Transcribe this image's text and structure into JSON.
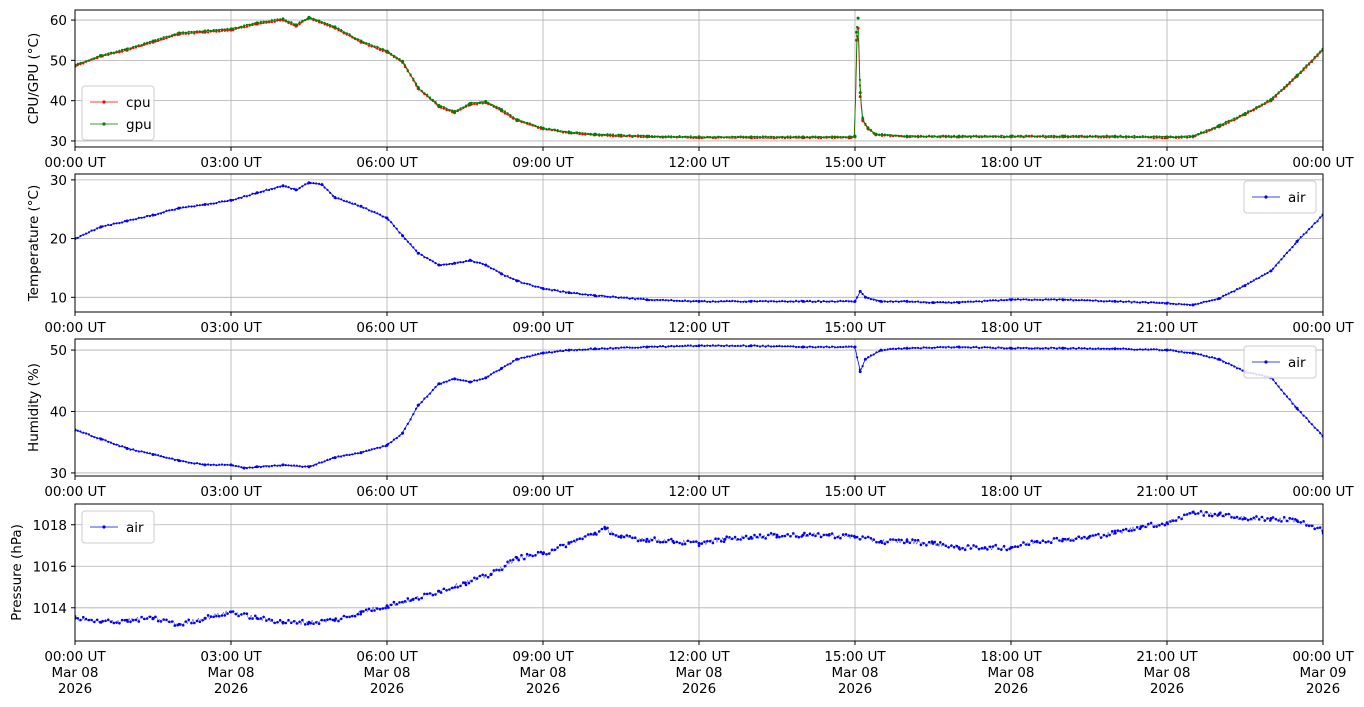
{
  "chart_data": [
    {
      "type": "line",
      "ylabel": "CPU/GPU (°C)",
      "ylim": [
        28.5,
        62.5
      ],
      "xlim": [
        0,
        24
      ],
      "yticks": [
        30,
        40,
        50,
        60
      ],
      "xticks": [
        0,
        3,
        6,
        9,
        12,
        15,
        18,
        21,
        24
      ],
      "xtick_labels": [
        "00:00 UT",
        "03:00 UT",
        "06:00 UT",
        "09:00 UT",
        "12:00 UT",
        "15:00 UT",
        "18:00 UT",
        "21:00 UT",
        "00:00 UT"
      ],
      "grid": true,
      "legend_position": "lower-left",
      "series": [
        {
          "name": "cpu",
          "color": "#ff0000",
          "x": [
            0,
            0.5,
            1,
            1.5,
            2,
            2.5,
            3,
            3.5,
            4,
            4.25,
            4.5,
            5,
            5.5,
            6,
            6.3,
            6.6,
            7,
            7.3,
            7.6,
            7.9,
            8.2,
            8.5,
            9,
            9.5,
            10,
            10.5,
            11,
            12,
            13,
            14,
            14.9,
            15,
            15.03,
            15.06,
            15.1,
            15.15,
            15.25,
            15.4,
            16,
            17,
            18,
            19,
            20,
            21,
            21.5,
            22,
            22.5,
            23,
            23.5,
            24
          ],
          "values": [
            48.5,
            51,
            52.5,
            54.5,
            56.5,
            57,
            57.5,
            59,
            60,
            58.5,
            60.5,
            58,
            54.5,
            52,
            49.5,
            43,
            38.5,
            37,
            39,
            39.5,
            37.5,
            35,
            33,
            32,
            31.5,
            31.2,
            31,
            30.8,
            30.8,
            30.8,
            30.8,
            31,
            55,
            58,
            41,
            35,
            33,
            31.5,
            31,
            31,
            31,
            31,
            31,
            30.8,
            31,
            33.5,
            36.5,
            40,
            46,
            52.5
          ]
        },
        {
          "name": "gpu",
          "color": "#008000",
          "x": [
            0,
            0.5,
            1,
            1.5,
            2,
            2.5,
            3,
            3.5,
            4,
            4.25,
            4.5,
            5,
            5.5,
            6,
            6.3,
            6.6,
            7,
            7.3,
            7.6,
            7.9,
            8.2,
            8.5,
            9,
            9.5,
            10,
            10.5,
            11,
            12,
            13,
            14,
            14.9,
            15,
            15.03,
            15.06,
            15.1,
            15.15,
            15.25,
            15.4,
            16,
            17,
            18,
            19,
            20,
            21,
            21.5,
            22,
            22.5,
            23,
            23.5,
            24
          ],
          "values": [
            48.8,
            51.2,
            52.8,
            54.8,
            56.8,
            57.3,
            57.8,
            59.3,
            60.3,
            58.8,
            60.7,
            58.3,
            54.8,
            52.3,
            49.8,
            43.3,
            38.8,
            37.3,
            39.3,
            39.8,
            37.8,
            35.3,
            33.2,
            32.2,
            31.7,
            31.4,
            31.2,
            31,
            31,
            31,
            31,
            31.2,
            57,
            60.5,
            42,
            35.5,
            33.3,
            31.7,
            31.2,
            31.2,
            31.2,
            31.2,
            31.2,
            31,
            31.2,
            33.8,
            36.8,
            40.3,
            46.3,
            52.8
          ]
        }
      ]
    },
    {
      "type": "line",
      "ylabel": "Temperature (°C)",
      "ylim": [
        7.5,
        31
      ],
      "xlim": [
        0,
        24
      ],
      "yticks": [
        10,
        20,
        30
      ],
      "xticks": [
        0,
        3,
        6,
        9,
        12,
        15,
        18,
        21,
        24
      ],
      "xtick_labels": [
        "00:00 UT",
        "03:00 UT",
        "06:00 UT",
        "09:00 UT",
        "12:00 UT",
        "15:00 UT",
        "18:00 UT",
        "21:00 UT",
        "00:00 UT"
      ],
      "grid": true,
      "legend_position": "upper-right",
      "series": [
        {
          "name": "air",
          "color": "#0000ff",
          "x": [
            0,
            0.5,
            1,
            1.5,
            2,
            2.5,
            3,
            3.5,
            4,
            4.25,
            4.5,
            4.75,
            5,
            5.5,
            6,
            6.3,
            6.6,
            7,
            7.3,
            7.6,
            7.9,
            8.2,
            8.5,
            9,
            9.5,
            10,
            11,
            12,
            13,
            14,
            15,
            15.1,
            15.2,
            15.5,
            16,
            16.5,
            17,
            18,
            19,
            20,
            21,
            21.5,
            22,
            22.5,
            23,
            23.5,
            24
          ],
          "values": [
            20,
            22,
            23,
            24,
            25.2,
            25.8,
            26.5,
            27.8,
            29,
            28.3,
            29.5,
            29.2,
            27,
            25.5,
            23.5,
            20.5,
            17.5,
            15.5,
            15.8,
            16.3,
            15.5,
            14,
            12.8,
            11.5,
            10.8,
            10.3,
            9.6,
            9.3,
            9.3,
            9.3,
            9.3,
            11,
            10,
            9.3,
            9.3,
            9.1,
            9.1,
            9.6,
            9.6,
            9.3,
            9,
            8.7,
            9.8,
            12,
            14.5,
            19.5,
            24
          ]
        }
      ]
    },
    {
      "type": "line",
      "ylabel": "Humidity (%)",
      "ylim": [
        29.5,
        51.8
      ],
      "xlim": [
        0,
        24
      ],
      "yticks": [
        30,
        40,
        50
      ],
      "xticks": [
        0,
        3,
        6,
        9,
        12,
        15,
        18,
        21,
        24
      ],
      "xtick_labels": [
        "00:00 UT",
        "03:00 UT",
        "06:00 UT",
        "09:00 UT",
        "12:00 UT",
        "15:00 UT",
        "18:00 UT",
        "21:00 UT",
        "00:00 UT"
      ],
      "grid": true,
      "legend_position": "upper-right",
      "series": [
        {
          "name": "air",
          "color": "#0000ff",
          "x": [
            0,
            0.5,
            1,
            1.5,
            2,
            2.5,
            3,
            3.25,
            3.5,
            4,
            4.5,
            5,
            5.5,
            6,
            6.3,
            6.6,
            7,
            7.3,
            7.6,
            7.9,
            8.2,
            8.5,
            9,
            9.5,
            10,
            11,
            12,
            13,
            14,
            15,
            15.1,
            15.2,
            15.5,
            16,
            17,
            18,
            19,
            20,
            21,
            21.5,
            22,
            22.5,
            23,
            23.5,
            24
          ],
          "values": [
            37,
            35.5,
            34,
            33,
            32,
            31.3,
            31.3,
            30.8,
            31,
            31.3,
            31,
            32.5,
            33.3,
            34.5,
            36.5,
            41,
            44.5,
            45.3,
            44.8,
            45.5,
            47,
            48.5,
            49.5,
            50,
            50.2,
            50.5,
            50.7,
            50.7,
            50.5,
            50.5,
            46.5,
            48.5,
            50,
            50.3,
            50.5,
            50.3,
            50.3,
            50.2,
            50,
            49.5,
            48.5,
            46.5,
            45.5,
            40.5,
            36
          ]
        }
      ]
    },
    {
      "type": "scatter",
      "ylabel": "Pressure (hPa)",
      "ylim": [
        1012.4,
        1019.0
      ],
      "xlim": [
        0,
        24
      ],
      "yticks": [
        1014,
        1016,
        1018
      ],
      "xticks": [
        0,
        3,
        6,
        9,
        12,
        15,
        18,
        21,
        24
      ],
      "xtick_labels": [
        "00:00 UT\nMar 08\n2026",
        "03:00 UT\nMar 08\n2026",
        "06:00 UT\nMar 08\n2026",
        "09:00 UT\nMar 08\n2026",
        "12:00 UT\nMar 08\n2026",
        "15:00 UT\nMar 08\n2026",
        "18:00 UT\nMar 08\n2026",
        "21:00 UT\nMar 08\n2026",
        "00:00 UT\nMar 09\n2026"
      ],
      "grid": true,
      "legend_position": "upper-left",
      "series": [
        {
          "name": "air",
          "color": "#0000ff",
          "x": [
            0,
            0.5,
            1,
            1.5,
            2,
            2.5,
            3,
            3.5,
            4,
            4.5,
            5,
            5.5,
            6,
            6.5,
            7,
            7.5,
            8,
            8.5,
            9,
            9.5,
            10,
            10.2,
            10.5,
            11,
            11.5,
            12,
            12.5,
            13,
            13.5,
            14,
            14.5,
            15,
            15.5,
            16,
            16.5,
            17,
            17.5,
            18,
            18.5,
            19,
            19.5,
            20,
            20.5,
            21,
            21.5,
            22,
            22.5,
            23,
            23.5,
            24
          ],
          "values": [
            1013.5,
            1013.3,
            1013.4,
            1013.5,
            1013.2,
            1013.5,
            1013.8,
            1013.5,
            1013.3,
            1013.3,
            1013.4,
            1013.8,
            1014.1,
            1014.4,
            1014.8,
            1015.2,
            1015.6,
            1016.4,
            1016.6,
            1017.1,
            1017.6,
            1017.8,
            1017.4,
            1017.3,
            1017.2,
            1017.1,
            1017.3,
            1017.4,
            1017.5,
            1017.5,
            1017.5,
            1017.4,
            1017.2,
            1017.2,
            1017.1,
            1016.9,
            1016.9,
            1016.9,
            1017.2,
            1017.3,
            1017.4,
            1017.6,
            1017.9,
            1018.1,
            1018.6,
            1018.5,
            1018.3,
            1018.3,
            1018.2,
            1017.7
          ]
        }
      ]
    }
  ]
}
